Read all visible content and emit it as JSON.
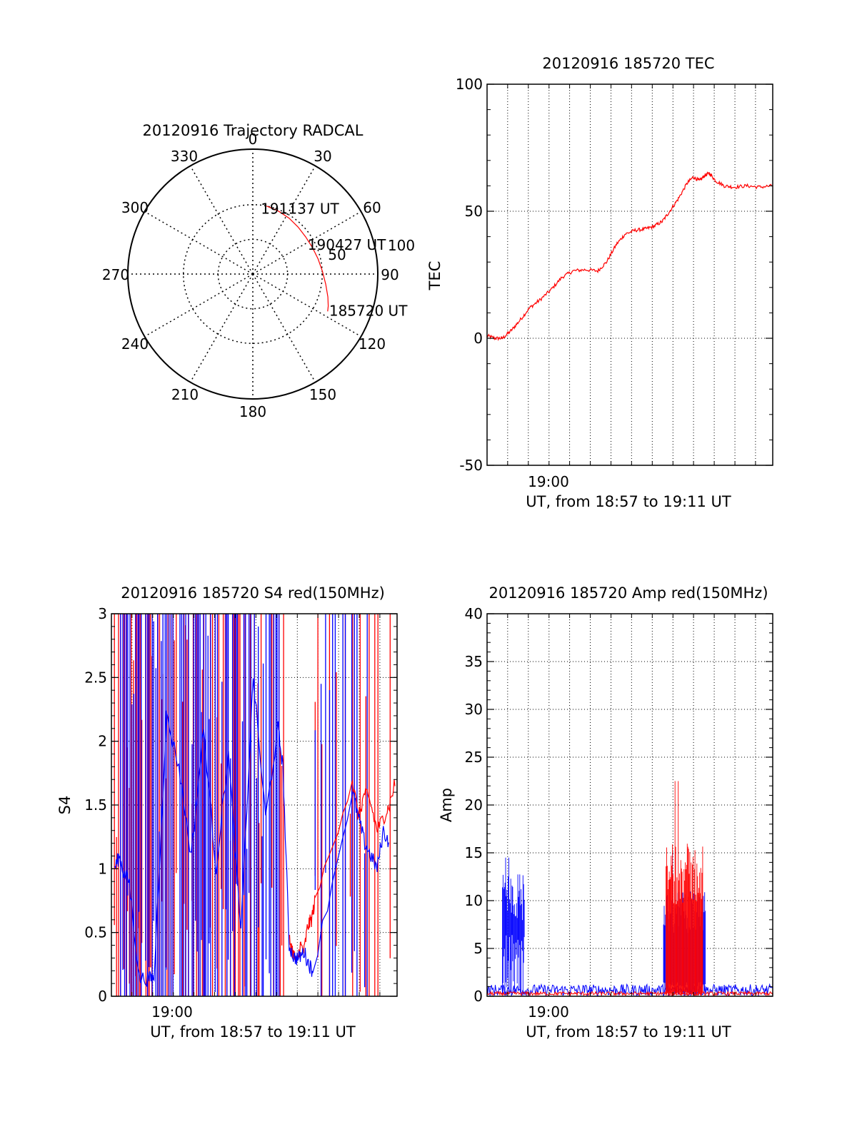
{
  "colors": {
    "red": "#ff0000",
    "blue": "#0000ff",
    "axis": "#000000",
    "grid": "#000000",
    "background": "#ffffff"
  },
  "chart_data": [
    {
      "id": "polar",
      "type": "scatter",
      "projection": "polar",
      "title": "20120916 Trajectory RADCAL",
      "azimuth_labels": [
        "0",
        "30",
        "60",
        "90",
        "120",
        "150",
        "180",
        "210",
        "240",
        "270",
        "300",
        "330"
      ],
      "azimuth_values": [
        0,
        30,
        60,
        90,
        120,
        150,
        180,
        210,
        240,
        270,
        300,
        330
      ],
      "elevation_rings": [
        50,
        100
      ],
      "ring_label": "50",
      "ring_label_extra": "100",
      "series": [
        {
          "name": "trajectory",
          "color": "red",
          "points": [
            {
              "az": 11.4,
              "zen": 100.0
            },
            {
              "az": 22.0,
              "zen": 98.0
            },
            {
              "az": 33.0,
              "zen": 96.0
            },
            {
              "az": 44.0,
              "zen": 94.0
            },
            {
              "az": 55.0,
              "zen": 93.0
            },
            {
              "az": 66.0,
              "zen": 94.0
            },
            {
              "az": 77.0,
              "zen": 96.5
            },
            {
              "az": 88.0,
              "zen": 100.5
            },
            {
              "az": 98.0,
              "zen": 106.0
            },
            {
              "az": 107.0,
              "zen": 113.0
            },
            {
              "az": 113.0,
              "zen": 118.0
            },
            {
              "az": 116.5,
              "zen": 120.5
            }
          ]
        }
      ],
      "annotations": [
        {
          "text": "191137 UT",
          "az": 11.4,
          "zen": 100.0
        },
        {
          "text": "190427 UT",
          "az": 73.0,
          "zen": 95.5
        },
        {
          "text": "185720 UT",
          "az": 116.5,
          "zen": 120.5
        }
      ]
    },
    {
      "id": "tec",
      "type": "line",
      "title": "20120916 185720 TEC",
      "ylabel": "TEC",
      "xlabel": "UT, from 18:57 to 19:11 UT",
      "x_tick_label": "19:00",
      "xlim": [
        18.9556,
        19.1861
      ],
      "ylim": [
        -50,
        100
      ],
      "yticks": [
        -50,
        0,
        50,
        100
      ],
      "y_tick_labels": [
        "-50",
        "0",
        "50",
        "100"
      ],
      "minor_y": 10,
      "x_grid": [
        18.9722,
        18.9889,
        19.0056,
        19.0222,
        19.0389,
        19.0556,
        19.0722,
        19.0889,
        19.1056,
        19.1222,
        19.1389,
        19.1556,
        19.1722
      ],
      "y_grid": [
        0,
        50
      ],
      "series": [
        {
          "name": "TEC",
          "color": "red",
          "x": [
            18.9556,
            18.962,
            18.968,
            18.975,
            18.982,
            18.99,
            18.998,
            19.007,
            19.016,
            19.025,
            19.035,
            19.045,
            19.052,
            19.06,
            19.067,
            19.075,
            19.083,
            19.09,
            19.097,
            19.103,
            19.11,
            19.117,
            19.122,
            19.127,
            19.131,
            19.135,
            19.14,
            19.147,
            19.155,
            19.165,
            19.175,
            19.1861
          ],
          "values": [
            1,
            0,
            0,
            3,
            7,
            12,
            15,
            19,
            24,
            26.5,
            27,
            26.5,
            30,
            37,
            41,
            42.5,
            43,
            44,
            46,
            50,
            55,
            61,
            63.5,
            62,
            64,
            65,
            62,
            60,
            59.5,
            60,
            59.5,
            60
          ]
        }
      ]
    },
    {
      "id": "s4",
      "type": "line",
      "title": "20120916 185720 S4 red(150MHz)",
      "ylabel": "S4",
      "xlabel": "UT, from 18:57 to 19:11 UT",
      "x_tick_label": "19:00",
      "xlim": [
        18.9556,
        19.1861
      ],
      "ylim": [
        0,
        3
      ],
      "yticks": [
        0,
        0.5,
        1,
        1.5,
        2,
        2.5,
        3
      ],
      "y_tick_labels": [
        "0",
        "0.5",
        "1",
        "1.5",
        "2",
        "2.5",
        "3"
      ],
      "minor_y": 0.1,
      "x_grid": [
        18.9722,
        18.9889,
        19.0056,
        19.0222,
        19.0389,
        19.0556,
        19.0722,
        19.0889,
        19.1056,
        19.1222,
        19.1389,
        19.1556,
        19.1722
      ],
      "y_grid": [
        0.5,
        1,
        1.5,
        2,
        2.5
      ],
      "saturated_bands": [
        {
          "series": "red",
          "from": 18.958,
          "to": 19.097,
          "note": "dense vertical saturation, values reach axis top (3)"
        },
        {
          "series": "blue",
          "from": 18.963,
          "to": 19.093,
          "note": "dense vertical saturation"
        },
        {
          "series": "red",
          "from": 19.12,
          "to": 19.185,
          "note": "intermittent saturation"
        },
        {
          "series": "blue",
          "from": 19.12,
          "to": 19.17,
          "note": "intermittent saturation"
        }
      ],
      "series": [
        {
          "name": "red",
          "color": "red",
          "x": [
            19.099,
            19.102,
            19.105,
            19.108,
            19.111,
            19.114,
            19.117,
            19.12,
            19.15,
            19.155,
            19.16,
            19.165,
            19.17,
            19.175,
            19.18,
            19.185
          ],
          "values": [
            0.45,
            0.35,
            0.25,
            0.4,
            0.35,
            0.55,
            0.6,
            0.75,
            1.7,
            1.4,
            1.6,
            1.5,
            1.3,
            1.4,
            1.5,
            1.7
          ]
        },
        {
          "name": "blue",
          "color": "blue",
          "x": [
            18.958,
            18.962,
            18.966,
            18.97,
            18.978,
            18.986,
            18.99,
            19.0,
            19.01,
            19.02,
            19.03,
            19.04,
            19.05,
            19.06,
            19.07,
            19.08,
            19.09,
            19.094,
            19.099,
            19.103,
            19.107,
            19.111,
            19.115,
            19.118,
            19.15,
            19.155,
            19.16,
            19.165,
            19.17,
            19.175,
            19.18
          ],
          "values": [
            1.0,
            1.1,
            0.95,
            0.9,
            0.14,
            0.14,
            0.14,
            2.2,
            1.8,
            1.1,
            2.1,
            1.0,
            1.9,
            0.5,
            2.5,
            1.4,
            2.1,
            1.8,
            0.4,
            0.3,
            0.3,
            0.35,
            0.25,
            0.2,
            1.6,
            1.4,
            1.2,
            1.1,
            1.0,
            1.3,
            1.2
          ]
        }
      ]
    },
    {
      "id": "amp",
      "type": "line",
      "title": "20120916 185720 Amp red(150MHz)",
      "ylabel": "Amp",
      "xlabel": "UT, from 18:57 to 19:11 UT",
      "x_tick_label": "19:00",
      "xlim": [
        18.9556,
        19.1861
      ],
      "ylim": [
        0,
        40
      ],
      "yticks": [
        0,
        5,
        10,
        15,
        20,
        25,
        30,
        35,
        40
      ],
      "y_tick_labels": [
        "0",
        "5",
        "10",
        "15",
        "20",
        "25",
        "30",
        "35",
        "40"
      ],
      "minor_y": 1,
      "x_grid": [
        18.9722,
        18.9889,
        19.0056,
        19.0222,
        19.0389,
        19.0556,
        19.0722,
        19.0889,
        19.1056,
        19.1222,
        19.1389,
        19.1556,
        19.1722
      ],
      "y_grid": [
        5,
        10,
        15,
        20,
        25,
        30,
        35
      ],
      "series": [
        {
          "name": "blue",
          "color": "blue",
          "bursts": [
            {
              "from": 18.968,
              "to": 18.986,
              "low": 6.5,
              "high": 13.0,
              "peak": 14.5
            },
            {
              "from": 19.098,
              "to": 19.132,
              "low": 1.5,
              "high": 11.0,
              "peak": 15.0
            }
          ],
          "baseline": 0.4
        },
        {
          "name": "red",
          "color": "red",
          "bursts": [
            {
              "from": 19.1,
              "to": 19.13,
              "low": 0.5,
              "high": 16.0,
              "peak": 22.5
            }
          ],
          "baseline": 0.2
        }
      ]
    }
  ]
}
